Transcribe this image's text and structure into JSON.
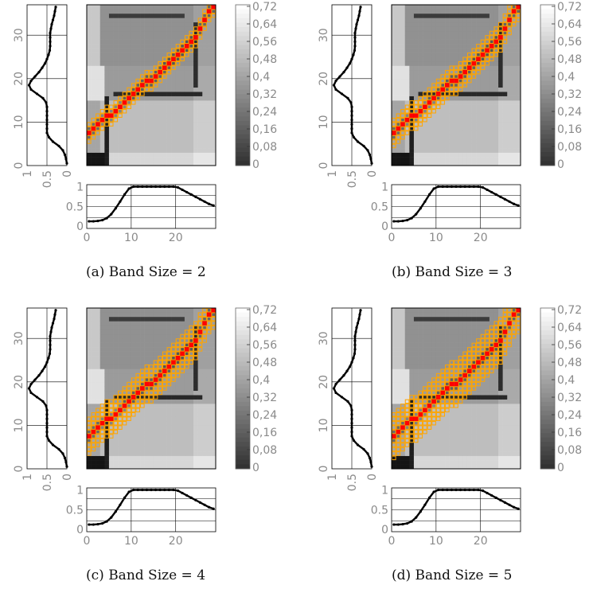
{
  "captions": {
    "a": "(a) Band Size = 2",
    "b": "(b) Band Size = 3",
    "c": "(c) Band Size = 4",
    "d": "(d) Band Size = 5"
  },
  "colors": {
    "path": "#ff0000",
    "band": "#ffa500",
    "curve": "#000000",
    "axis_text": "#8a8a8a"
  },
  "chart_data": [
    {
      "type": "heatmap",
      "band_size": 2,
      "n_cols": 29,
      "n_rows": 37,
      "warp_path": [
        [
          0,
          7
        ],
        [
          1,
          8
        ],
        [
          2,
          9
        ],
        [
          3,
          10
        ],
        [
          4,
          11
        ],
        [
          5,
          11
        ],
        [
          6,
          12
        ],
        [
          7,
          13
        ],
        [
          8,
          14
        ],
        [
          9,
          15
        ],
        [
          10,
          16
        ],
        [
          11,
          17
        ],
        [
          12,
          18
        ],
        [
          13,
          19
        ],
        [
          14,
          19
        ],
        [
          15,
          20
        ],
        [
          16,
          21
        ],
        [
          17,
          22
        ],
        [
          18,
          23
        ],
        [
          19,
          24
        ],
        [
          20,
          25
        ],
        [
          21,
          26
        ],
        [
          22,
          27
        ],
        [
          23,
          28
        ],
        [
          24,
          29
        ],
        [
          25,
          31
        ],
        [
          26,
          33
        ],
        [
          27,
          35
        ],
        [
          28,
          36
        ]
      ],
      "colorbar": {
        "ticks": [
          "0,72",
          "0,64",
          "0,56",
          "0,48",
          "0,4",
          "0,32",
          "0,24",
          "0,16",
          "0,08",
          "0"
        ],
        "range": [
          0,
          0.72
        ]
      },
      "bottom_plot": {
        "x_ticks": [
          "0",
          "10",
          "20"
        ],
        "y_ticks": [
          "0",
          "0.5",
          "1"
        ],
        "xlim": [
          0,
          29
        ],
        "ylim": [
          0,
          1
        ],
        "values": [
          0.12,
          0.12,
          0.13,
          0.15,
          0.2,
          0.3,
          0.45,
          0.62,
          0.8,
          0.95,
          1,
          1,
          1,
          1,
          1,
          1,
          1,
          1,
          1,
          1,
          0.98,
          0.92,
          0.86,
          0.8,
          0.74,
          0.68,
          0.62,
          0.56,
          0.52
        ]
      },
      "left_plot": {
        "y_ticks": [
          "0",
          "10",
          "20",
          "30"
        ],
        "x_ticks": [
          "1",
          "0.5",
          "0"
        ],
        "ylim": [
          0,
          37
        ],
        "xlim": [
          1,
          0
        ],
        "values": [
          0,
          0.02,
          0.05,
          0.1,
          0.2,
          0.35,
          0.45,
          0.5,
          0.5,
          0.5,
          0.5,
          0.5,
          0.5,
          0.5,
          0.52,
          0.6,
          0.75,
          0.9,
          0.95,
          0.9,
          0.8,
          0.7,
          0.62,
          0.55,
          0.5,
          0.46,
          0.43,
          0.42,
          0.42,
          0.42,
          0.42,
          0.4,
          0.38,
          0.35,
          0.32,
          0.3,
          0.28
        ]
      }
    },
    {
      "type": "heatmap",
      "band_size": 3,
      "n_cols": 29,
      "n_rows": 37,
      "warp_path": [
        [
          0,
          7
        ],
        [
          1,
          8
        ],
        [
          2,
          9
        ],
        [
          3,
          10
        ],
        [
          4,
          11
        ],
        [
          5,
          11
        ],
        [
          6,
          12
        ],
        [
          7,
          13
        ],
        [
          8,
          14
        ],
        [
          9,
          15
        ],
        [
          10,
          16
        ],
        [
          11,
          17
        ],
        [
          12,
          18
        ],
        [
          13,
          19
        ],
        [
          14,
          19
        ],
        [
          15,
          20
        ],
        [
          16,
          21
        ],
        [
          17,
          22
        ],
        [
          18,
          23
        ],
        [
          19,
          24
        ],
        [
          20,
          25
        ],
        [
          21,
          26
        ],
        [
          22,
          27
        ],
        [
          23,
          28
        ],
        [
          24,
          29
        ],
        [
          25,
          31
        ],
        [
          26,
          33
        ],
        [
          27,
          35
        ],
        [
          28,
          36
        ]
      ],
      "colorbar": {
        "ticks": [
          "0,72",
          "0,64",
          "0,56",
          "0,48",
          "0,4",
          "0,32",
          "0,24",
          "0,16",
          "0,08",
          "0"
        ],
        "range": [
          0,
          0.72
        ]
      },
      "bottom_plot": {
        "x_ticks": [
          "0",
          "10",
          "20"
        ],
        "y_ticks": [
          "0",
          "0.5",
          "1"
        ],
        "xlim": [
          0,
          29
        ],
        "ylim": [
          0,
          1
        ],
        "values": [
          0.12,
          0.12,
          0.13,
          0.15,
          0.2,
          0.3,
          0.45,
          0.62,
          0.8,
          0.95,
          1,
          1,
          1,
          1,
          1,
          1,
          1,
          1,
          1,
          1,
          0.98,
          0.92,
          0.86,
          0.8,
          0.74,
          0.68,
          0.62,
          0.56,
          0.52
        ]
      },
      "left_plot": {
        "y_ticks": [
          "0",
          "10",
          "20",
          "30"
        ],
        "x_ticks": [
          "1",
          "0.5",
          "0"
        ],
        "ylim": [
          0,
          37
        ],
        "xlim": [
          1,
          0
        ],
        "values": [
          0,
          0.02,
          0.05,
          0.1,
          0.2,
          0.35,
          0.45,
          0.5,
          0.5,
          0.5,
          0.5,
          0.5,
          0.5,
          0.5,
          0.52,
          0.6,
          0.75,
          0.9,
          0.95,
          0.9,
          0.8,
          0.7,
          0.62,
          0.55,
          0.5,
          0.46,
          0.43,
          0.42,
          0.42,
          0.42,
          0.42,
          0.4,
          0.38,
          0.35,
          0.32,
          0.3,
          0.28
        ]
      }
    },
    {
      "type": "heatmap",
      "band_size": 4,
      "n_cols": 29,
      "n_rows": 37,
      "warp_path": [
        [
          0,
          7
        ],
        [
          1,
          8
        ],
        [
          2,
          9
        ],
        [
          3,
          10
        ],
        [
          4,
          11
        ],
        [
          5,
          11
        ],
        [
          6,
          12
        ],
        [
          7,
          13
        ],
        [
          8,
          14
        ],
        [
          9,
          15
        ],
        [
          10,
          16
        ],
        [
          11,
          17
        ],
        [
          12,
          18
        ],
        [
          13,
          19
        ],
        [
          14,
          19
        ],
        [
          15,
          20
        ],
        [
          16,
          21
        ],
        [
          17,
          22
        ],
        [
          18,
          23
        ],
        [
          19,
          24
        ],
        [
          20,
          25
        ],
        [
          21,
          26
        ],
        [
          22,
          27
        ],
        [
          23,
          28
        ],
        [
          24,
          29
        ],
        [
          25,
          31
        ],
        [
          26,
          33
        ],
        [
          27,
          35
        ],
        [
          28,
          36
        ]
      ],
      "colorbar": {
        "ticks": [
          "0,72",
          "0,64",
          "0,56",
          "0,48",
          "0,4",
          "0,32",
          "0,24",
          "0,16",
          "0,08",
          "0"
        ],
        "range": [
          0,
          0.72
        ]
      },
      "bottom_plot": {
        "x_ticks": [
          "0",
          "10",
          "20"
        ],
        "y_ticks": [
          "0",
          "0.5",
          "1"
        ],
        "xlim": [
          0,
          29
        ],
        "ylim": [
          0,
          1
        ],
        "values": [
          0.12,
          0.12,
          0.13,
          0.15,
          0.2,
          0.3,
          0.45,
          0.62,
          0.8,
          0.95,
          1,
          1,
          1,
          1,
          1,
          1,
          1,
          1,
          1,
          1,
          0.98,
          0.92,
          0.86,
          0.8,
          0.74,
          0.68,
          0.62,
          0.56,
          0.52
        ]
      },
      "left_plot": {
        "y_ticks": [
          "0",
          "10",
          "20",
          "30"
        ],
        "x_ticks": [
          "1",
          "0.5",
          "0"
        ],
        "ylim": [
          0,
          37
        ],
        "xlim": [
          1,
          0
        ],
        "values": [
          0,
          0.02,
          0.05,
          0.1,
          0.2,
          0.35,
          0.45,
          0.5,
          0.5,
          0.5,
          0.5,
          0.5,
          0.5,
          0.5,
          0.52,
          0.6,
          0.75,
          0.9,
          0.95,
          0.9,
          0.8,
          0.7,
          0.62,
          0.55,
          0.5,
          0.46,
          0.43,
          0.42,
          0.42,
          0.42,
          0.42,
          0.4,
          0.38,
          0.35,
          0.32,
          0.3,
          0.28
        ]
      }
    },
    {
      "type": "heatmap",
      "band_size": 5,
      "n_cols": 29,
      "n_rows": 37,
      "warp_path": [
        [
          0,
          7
        ],
        [
          1,
          8
        ],
        [
          2,
          9
        ],
        [
          3,
          10
        ],
        [
          4,
          11
        ],
        [
          5,
          11
        ],
        [
          6,
          12
        ],
        [
          7,
          13
        ],
        [
          8,
          14
        ],
        [
          9,
          15
        ],
        [
          10,
          16
        ],
        [
          11,
          17
        ],
        [
          12,
          18
        ],
        [
          13,
          19
        ],
        [
          14,
          19
        ],
        [
          15,
          20
        ],
        [
          16,
          21
        ],
        [
          17,
          22
        ],
        [
          18,
          23
        ],
        [
          19,
          24
        ],
        [
          20,
          25
        ],
        [
          21,
          26
        ],
        [
          22,
          27
        ],
        [
          23,
          28
        ],
        [
          24,
          29
        ],
        [
          25,
          31
        ],
        [
          26,
          33
        ],
        [
          27,
          35
        ],
        [
          28,
          36
        ]
      ],
      "colorbar": {
        "ticks": [
          "0,72",
          "0,64",
          "0,56",
          "0,48",
          "0,4",
          "0,32",
          "0,24",
          "0,16",
          "0,08",
          "0"
        ],
        "range": [
          0,
          0.72
        ]
      },
      "bottom_plot": {
        "x_ticks": [
          "0",
          "10",
          "20"
        ],
        "y_ticks": [
          "0",
          "0.5",
          "1"
        ],
        "xlim": [
          0,
          29
        ],
        "ylim": [
          0,
          1
        ],
        "values": [
          0.12,
          0.12,
          0.13,
          0.15,
          0.2,
          0.3,
          0.45,
          0.62,
          0.8,
          0.95,
          1,
          1,
          1,
          1,
          1,
          1,
          1,
          1,
          1,
          1,
          0.98,
          0.92,
          0.86,
          0.8,
          0.74,
          0.68,
          0.62,
          0.56,
          0.52
        ]
      },
      "left_plot": {
        "y_ticks": [
          "0",
          "10",
          "20",
          "30"
        ],
        "x_ticks": [
          "1",
          "0.5",
          "0"
        ],
        "ylim": [
          0,
          37
        ],
        "xlim": [
          1,
          0
        ],
        "values": [
          0,
          0.02,
          0.05,
          0.1,
          0.2,
          0.35,
          0.45,
          0.5,
          0.5,
          0.5,
          0.5,
          0.5,
          0.5,
          0.5,
          0.52,
          0.6,
          0.75,
          0.9,
          0.95,
          0.9,
          0.8,
          0.7,
          0.62,
          0.55,
          0.5,
          0.46,
          0.43,
          0.42,
          0.42,
          0.42,
          0.42,
          0.4,
          0.38,
          0.35,
          0.32,
          0.3,
          0.28
        ]
      }
    }
  ]
}
